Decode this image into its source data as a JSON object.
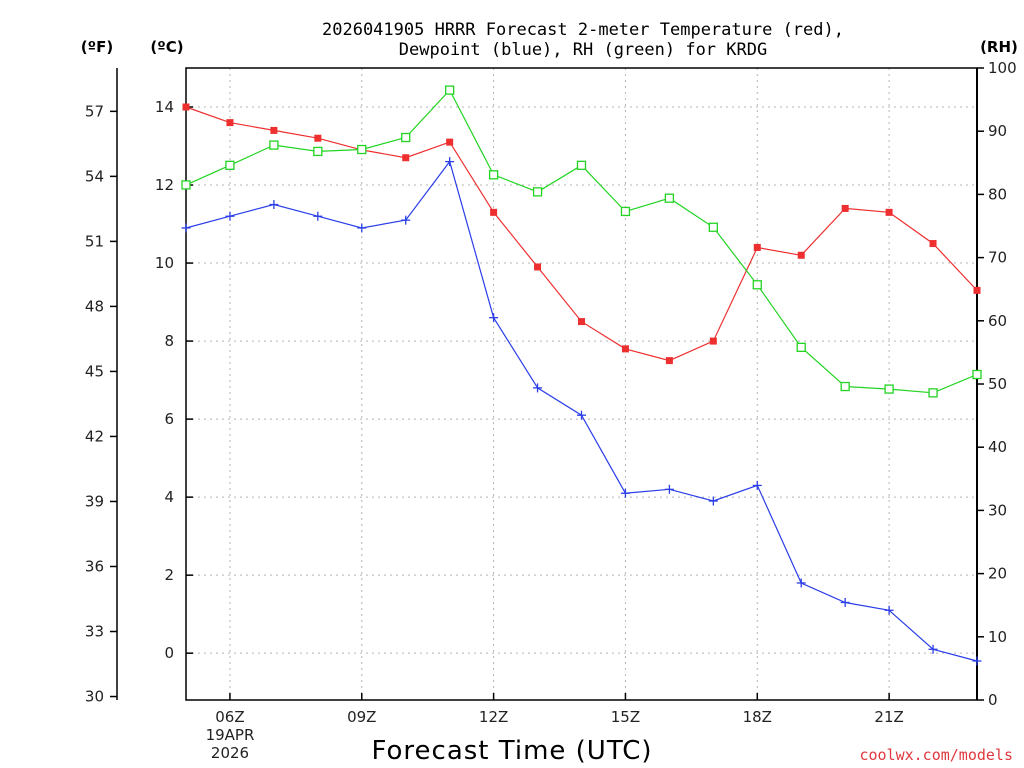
{
  "chart_data": {
    "type": "line",
    "title_line1": "2026041905 HRRR Forecast 2-meter Temperature (red),",
    "title_line2": "Dewpoint (blue), RH (green) for KRDG",
    "xlabel": "Forecast Time (UTC)",
    "credit": "coolwx.com/models",
    "left_f_unit": "(ºF)",
    "left_c_unit": "(ºC)",
    "right_unit": "(RH)",
    "date_line1": "19APR",
    "date_line2": "2026",
    "x_hours": [
      5,
      6,
      7,
      8,
      9,
      10,
      11,
      12,
      13,
      14,
      15,
      16,
      17,
      18,
      19,
      20,
      21,
      22,
      23
    ],
    "xlim": [
      5,
      23
    ],
    "x_ticks": [
      {
        "hour": 6,
        "label": "06Z"
      },
      {
        "hour": 9,
        "label": "09Z"
      },
      {
        "hour": 12,
        "label": "12Z"
      },
      {
        "hour": 15,
        "label": "15Z"
      },
      {
        "hour": 18,
        "label": "18Z"
      },
      {
        "hour": 21,
        "label": "21Z"
      }
    ],
    "c_ylim": [
      -1.2,
      15
    ],
    "c_ticks": [
      0,
      2,
      4,
      6,
      8,
      10,
      12,
      14
    ],
    "f_ticks": [
      30,
      33,
      36,
      39,
      42,
      45,
      48,
      51,
      54,
      57
    ],
    "rh_ylim": [
      0,
      100
    ],
    "rh_ticks": [
      0,
      10,
      20,
      30,
      40,
      50,
      60,
      70,
      80,
      90,
      100
    ],
    "series": [
      {
        "name": "Temperature",
        "units": "C",
        "axis": "left",
        "color": "#ee2f2f",
        "marker": "filled-square",
        "values": [
          14.0,
          13.6,
          13.4,
          13.2,
          12.9,
          12.7,
          13.1,
          11.3,
          9.9,
          8.5,
          7.8,
          7.5,
          8.0,
          10.4,
          10.2,
          11.4,
          11.3,
          10.5,
          9.3
        ]
      },
      {
        "name": "Dewpoint",
        "units": "C",
        "axis": "left",
        "color": "#2b3ee8",
        "marker": "plus",
        "values": [
          10.9,
          11.2,
          11.5,
          11.2,
          10.9,
          11.1,
          12.6,
          8.6,
          6.8,
          6.1,
          4.1,
          4.2,
          3.9,
          4.3,
          1.8,
          1.3,
          1.1,
          0.1,
          -0.2
        ]
      },
      {
        "name": "RH",
        "units": "%",
        "axis": "right",
        "color": "#22d422",
        "marker": "open-square",
        "values": [
          81.5,
          84.6,
          87.8,
          86.8,
          87.1,
          89.0,
          96.5,
          83.1,
          80.4,
          84.6,
          77.3,
          79.4,
          74.8,
          65.7,
          55.8,
          49.6,
          49.2,
          48.6,
          51.5
        ]
      }
    ]
  }
}
